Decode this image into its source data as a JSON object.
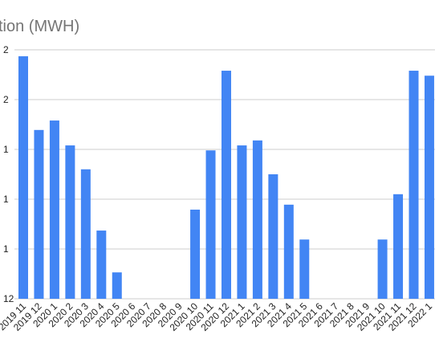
{
  "chart_data": {
    "type": "bar",
    "title": "tion (MWH)",
    "categories": [
      "2019 11",
      "2019 12",
      "2020 1",
      "2020 2",
      "2020 3",
      "2020 4",
      "2020 5",
      "2020 6",
      "2020 7",
      "2020 8",
      "2020 9",
      "2020 10",
      "2020 11",
      "2020 12",
      "2021 1",
      "2021 2",
      "2021 3",
      "2021 4",
      "2021 5",
      "2021 6",
      "2021 7",
      "2021 8",
      "2021 9",
      "2021 10",
      "2021 11",
      "2021 12",
      "2022 1"
    ],
    "values": [
      4.87,
      3.39,
      3.58,
      3.08,
      2.6,
      1.37,
      0.53,
      0,
      0,
      0,
      0,
      1.79,
      2.98,
      4.58,
      3.08,
      3.18,
      2.5,
      1.89,
      1.19,
      0,
      0,
      0,
      0,
      1.19,
      2.1,
      4.58,
      4.48
    ],
    "color": "#4285f4",
    "ylim": [
      0,
      5
    ],
    "yticks": [
      {
        "value": 0,
        "label": "12"
      },
      {
        "value": 1,
        "label": "1"
      },
      {
        "value": 2,
        "label": "1"
      },
      {
        "value": 3,
        "label": "1"
      },
      {
        "value": 4,
        "label": "2"
      },
      {
        "value": 5,
        "label": "2"
      }
    ],
    "grid": true
  }
}
